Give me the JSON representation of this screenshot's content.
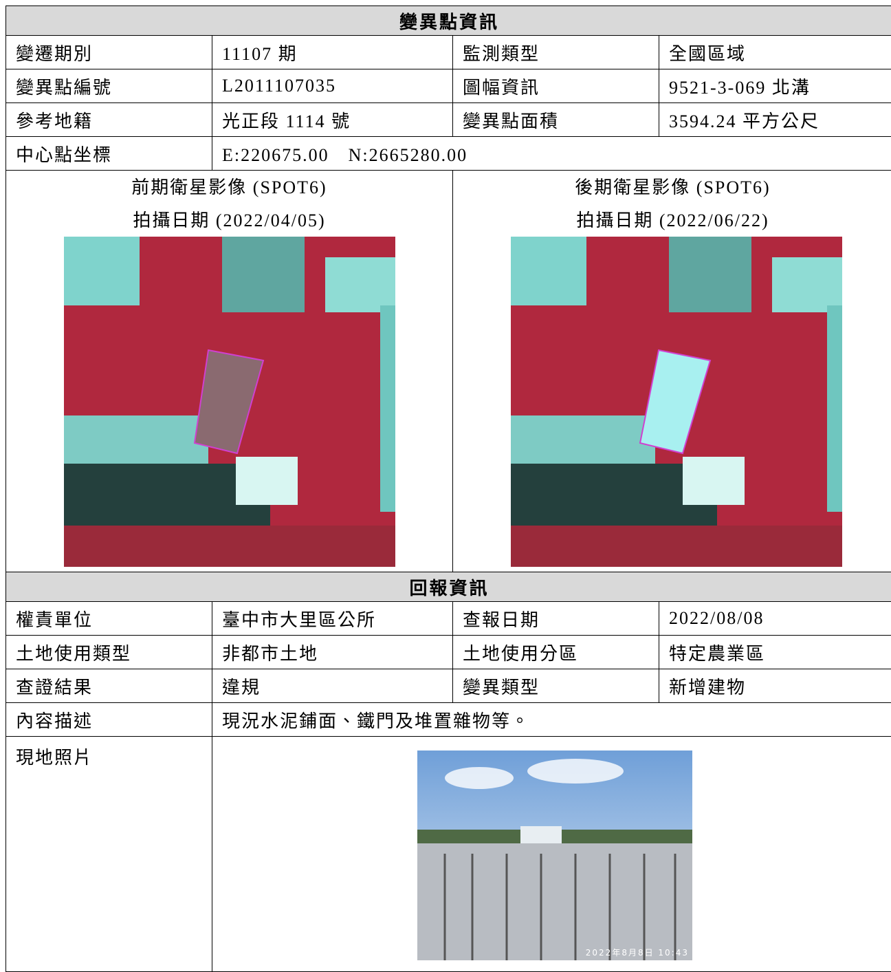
{
  "info": {
    "title": "變異點資訊",
    "rows": [
      [
        "變遷期別",
        "11107 期",
        "監測類型",
        "全國區域"
      ],
      [
        "變異點編號",
        "L2011107035",
        "圖幅資訊",
        "9521-3-069 北溝"
      ],
      [
        "參考地籍",
        "光正段 1114 號",
        "變異點面積",
        "3594.24 平方公尺"
      ],
      [
        "中心點坐標",
        "E:220675.00　N:2665280.00"
      ]
    ],
    "images": [
      {
        "caption": "前期衛星影像 (SPOT6)",
        "date": "拍攝日期 (2022/04/05)"
      },
      {
        "caption": "後期衛星影像 (SPOT6)",
        "date": "拍攝日期 (2022/06/22)"
      }
    ]
  },
  "report": {
    "title": "回報資訊",
    "rows": [
      [
        "權責單位",
        "臺中市大里區公所",
        "查報日期",
        "2022/08/08"
      ],
      [
        "土地使用類型",
        "非都市土地",
        "土地使用分區",
        "特定農業區"
      ],
      [
        "查證結果",
        "違規",
        "變異類型",
        "新增建物"
      ],
      [
        "內容描述",
        "現況水泥鋪面、鐵門及堆置雜物等。"
      ]
    ],
    "photo_label": "現地照片",
    "photo_timestamp": "2022年8月8日 10:43"
  }
}
